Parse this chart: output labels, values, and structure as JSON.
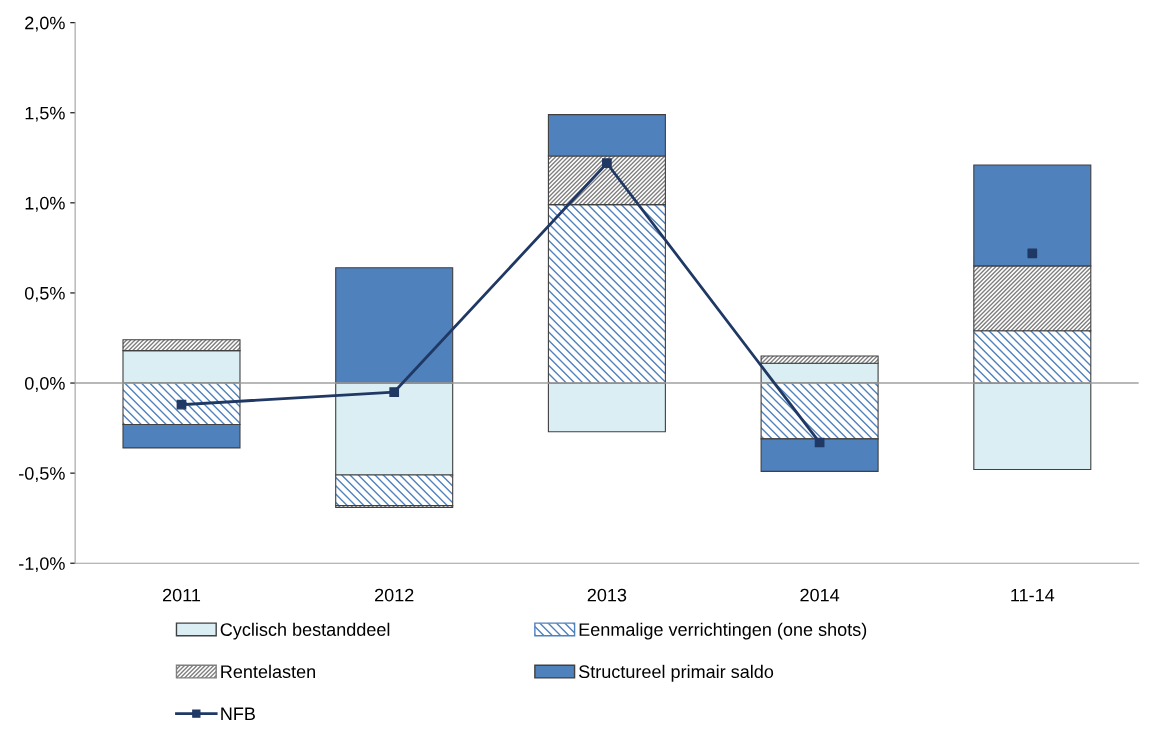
{
  "chart_data": {
    "type": "bar",
    "stacked": true,
    "categories": [
      "2011",
      "2012",
      "2013",
      "2014",
      "11-14"
    ],
    "series": [
      {
        "name": "Cyclisch bestanddeel",
        "color": "#dbeef3",
        "values": [
          0.18,
          -0.51,
          -0.27,
          0.11,
          -0.48
        ]
      },
      {
        "name": "Eenmalige verrichtingen (one shots)",
        "color": "#4f81bd",
        "values": [
          -0.23,
          -0.17,
          0.99,
          -0.31,
          0.29
        ]
      },
      {
        "name": "Rentelasten",
        "color": "#7f7f7f",
        "values": [
          0.06,
          -0.01,
          0.27,
          0.04,
          0.36
        ]
      },
      {
        "name": "Structureel primair saldo",
        "color": "#4f81bd",
        "values": [
          -0.13,
          0.64,
          0.23,
          -0.18,
          0.56
        ]
      },
      {
        "name": "NFB",
        "type": "line",
        "color": "#1f3864",
        "marker": "square",
        "values": [
          -0.12,
          -0.05,
          1.22,
          -0.33,
          null
        ]
      },
      {
        "type": "scatter",
        "color": "#1f3864",
        "marker": "square",
        "values": [
          null,
          null,
          null,
          null,
          0.72
        ]
      }
    ],
    "ylim": [
      -1.0,
      2.0
    ],
    "yticks": [
      {
        "value": -1.0,
        "label": "-1,0%"
      },
      {
        "value": -0.5,
        "label": "-0,5%"
      },
      {
        "value": 0.0,
        "label": "0,0%"
      },
      {
        "value": 0.5,
        "label": "0,5%"
      },
      {
        "value": 1.0,
        "label": "1,0%"
      },
      {
        "value": 1.5,
        "label": "1,5%"
      },
      {
        "value": 2.0,
        "label": "2,0%"
      }
    ],
    "ref_lines": [
      {
        "axis": "y",
        "value": 0.0,
        "color": "#a0a0a0"
      }
    ],
    "grid": false,
    "legend": "bottom"
  }
}
